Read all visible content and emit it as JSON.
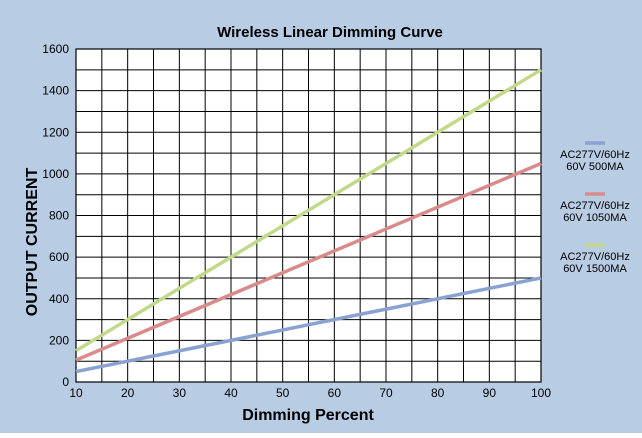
{
  "chart_data": {
    "type": "line",
    "title": "Wireless Linear Dimming Curve",
    "xlabel": "Dimming Percent",
    "ylabel": "OUTPUT CURRENT",
    "xlim": [
      10,
      100
    ],
    "ylim": [
      0,
      1600
    ],
    "x_ticks": [
      10,
      20,
      30,
      40,
      50,
      60,
      70,
      80,
      90,
      100
    ],
    "y_ticks": [
      0,
      200,
      400,
      600,
      800,
      1000,
      1200,
      1400,
      1600
    ],
    "grid": true,
    "legend_position": "right",
    "series": [
      {
        "name": "AC277V/60Hz 60V 500MA",
        "legend_lines": [
          "AC277V/60Hz",
          "60V 500MA"
        ],
        "color": "#8aa2d2",
        "x": [
          10,
          100
        ],
        "y": [
          50,
          500
        ]
      },
      {
        "name": "AC277V/60Hz 60V 1050MA",
        "legend_lines": [
          "AC277V/60Hz",
          "60V 1050MA"
        ],
        "color": "#d98b8b",
        "x": [
          10,
          100
        ],
        "y": [
          105,
          1050
        ]
      },
      {
        "name": "AC277V/60Hz 60V 1500MA",
        "legend_lines": [
          "AC277V/60Hz",
          "60V 1500MA"
        ],
        "color": "#c2d98a",
        "x": [
          10,
          100
        ],
        "y": [
          150,
          1500
        ]
      }
    ],
    "colors": {
      "background": "#b8cce4",
      "plot_background": "#ffffff",
      "grid": "#000000"
    }
  }
}
